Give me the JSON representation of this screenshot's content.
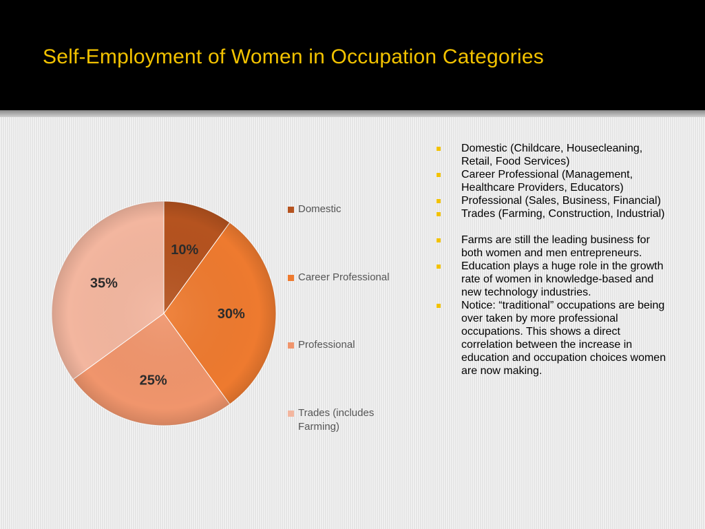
{
  "slide": {
    "title": "Self-Employment of Women in Occupation Categories",
    "header_bg": "#000000",
    "title_color": "#f2c200",
    "bullet_color": "#f2c200"
  },
  "chart_data": {
    "type": "pie",
    "categories": [
      "Domestic",
      "Career Professional",
      "Professional",
      "Trades (includes Farming)"
    ],
    "values": [
      10,
      30,
      25,
      35
    ],
    "labels": [
      "10%",
      "30%",
      "25%",
      "35%"
    ],
    "colors": [
      "#b5531f",
      "#ee7a2f",
      "#f0956c",
      "#f3b69f"
    ],
    "legend_position": "right"
  },
  "bullets": [
    "Domestic (Childcare, Housecleaning, Retail, Food Services)",
    "Career Professional (Management, Healthcare Providers, Educators)",
    "Professional (Sales, Business, Financial)",
    "Trades (Farming, Construction, Industrial)",
    "Farms are still the leading business for both women and men entrepreneurs.",
    "Education plays a huge role in the growth rate of women in knowledge-based and new technology industries.",
    "Notice: “traditional” occupations are being over taken by more professional occupations.  This shows a direct correlation between the increase in education and occupation choices women are now making."
  ]
}
